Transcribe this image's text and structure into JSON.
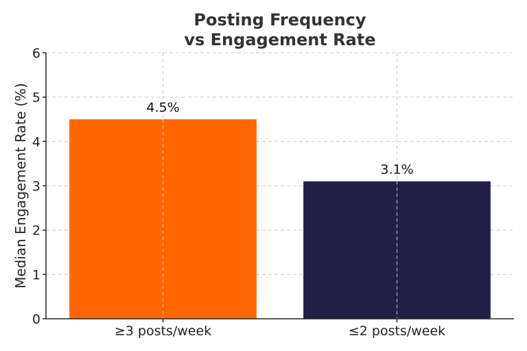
{
  "chart_data": {
    "type": "bar",
    "title": "Posting Frequency\nvs Engagement Rate",
    "title_lines": [
      "Posting Frequency",
      "vs Engagement Rate"
    ],
    "categories": [
      "≥3 posts/week",
      "≤2 posts/week"
    ],
    "values": [
      4.5,
      3.1
    ],
    "data_labels": [
      "4.5%",
      "3.1%"
    ],
    "colors": [
      "#ff6600",
      "#222048"
    ],
    "xlabel": "",
    "ylabel": "Median Engagement Rate (%)",
    "ylim": [
      0,
      6
    ],
    "yticks": [
      0,
      1,
      2,
      3,
      4,
      5,
      6
    ],
    "grid": true,
    "legend": "none"
  }
}
